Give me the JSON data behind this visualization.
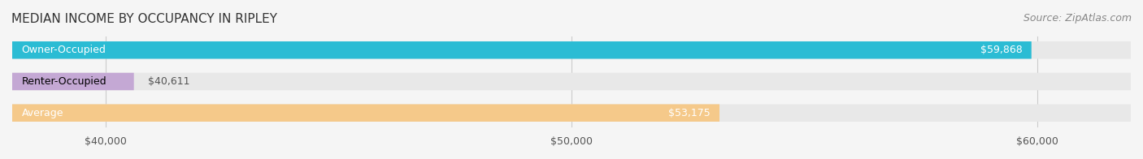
{
  "title": "MEDIAN INCOME BY OCCUPANCY IN RIPLEY",
  "source": "Source: ZipAtlas.com",
  "categories": [
    "Owner-Occupied",
    "Renter-Occupied",
    "Average"
  ],
  "values": [
    59868,
    40611,
    53175
  ],
  "bar_colors": [
    "#2bbcd4",
    "#c4a8d4",
    "#f5c98a"
  ],
  "bar_labels": [
    "$59,868",
    "$40,611",
    "$53,175"
  ],
  "xlim": [
    38000,
    62000
  ],
  "xticks": [
    40000,
    50000,
    60000
  ],
  "xtick_labels": [
    "$40,000",
    "$50,000",
    "$60,000"
  ],
  "background_color": "#f5f5f5",
  "bar_background_color": "#e8e8e8",
  "title_fontsize": 11,
  "source_fontsize": 9,
  "label_fontsize": 9,
  "tick_fontsize": 9,
  "bar_height": 0.55
}
